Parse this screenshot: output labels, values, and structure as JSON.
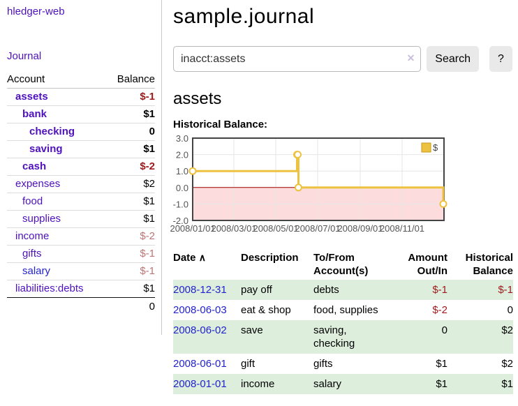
{
  "app": {
    "title": "hledger-web"
  },
  "sidebar": {
    "journal_link": "Journal",
    "accounts_table": {
      "headers": {
        "account": "Account",
        "balance": "Balance"
      },
      "rows": [
        {
          "name": "assets",
          "balance": "$-1",
          "depth": 1,
          "bold": true,
          "visited": true
        },
        {
          "name": "bank",
          "balance": "$1",
          "depth": 2,
          "bold": true,
          "visited": true
        },
        {
          "name": "checking",
          "balance": "0",
          "depth": 3,
          "bold": true,
          "visited": true
        },
        {
          "name": "saving",
          "balance": "$1",
          "depth": 3,
          "bold": true,
          "visited": true
        },
        {
          "name": "cash",
          "balance": "$-2",
          "depth": 2,
          "bold": true,
          "visited": true
        },
        {
          "name": "expenses",
          "balance": "$2",
          "depth": 1,
          "bold": false,
          "visited": true
        },
        {
          "name": "food",
          "balance": "$1",
          "depth": 2,
          "bold": false,
          "visited": true
        },
        {
          "name": "supplies",
          "balance": "$1",
          "depth": 2,
          "bold": false,
          "visited": true
        },
        {
          "name": "income",
          "balance": "$-2",
          "depth": 1,
          "bold": false,
          "visited": true
        },
        {
          "name": "gifts",
          "balance": "$-1",
          "depth": 2,
          "bold": false,
          "visited": true
        },
        {
          "name": "salary",
          "balance": "$-1",
          "depth": 2,
          "bold": false,
          "visited": false
        },
        {
          "name": "liabilities:debts",
          "balance": "$1",
          "depth": 1,
          "bold": false,
          "visited": true
        }
      ],
      "total": "0"
    }
  },
  "header": {
    "title": "sample.journal"
  },
  "search": {
    "value": "inacct:assets",
    "clear_icon": "✕",
    "button_label": "Search",
    "help_label": "?"
  },
  "account_page": {
    "heading": "assets",
    "chart_label": "Historical Balance:"
  },
  "chart_data": {
    "type": "line",
    "style": "step",
    "title": "Historical Balance",
    "series": [
      {
        "name": "$",
        "points": [
          [
            "2008/01/01",
            1
          ],
          [
            "2008/06/01",
            2
          ],
          [
            "2008/06/02",
            2
          ],
          [
            "2008/06/03",
            0
          ],
          [
            "2008/12/31",
            -1
          ]
        ]
      }
    ],
    "x_tick_labels": [
      "2008/01/01",
      "2008/03/01",
      "2008/05/01",
      "2008/07/01",
      "2008/09/01",
      "2008/11/01"
    ],
    "y_tick_labels": [
      "3.0",
      "2.0",
      "1.0",
      "0.0",
      "-1.0",
      "-2.0"
    ],
    "ylim": [
      -2,
      3
    ],
    "x_start": "2008/01/01",
    "x_days": 366,
    "legend": "$",
    "legend_position": "top-right",
    "grid": true,
    "series_color": "#edc240",
    "series_color_border": "#c89a1f",
    "below_zero_fill": "#fcdcdc",
    "zero_line_color": "#a40000",
    "grid_color": "#e6e6e6",
    "plot_border_color": "#444444",
    "axis_text_color": "#545454"
  },
  "register": {
    "headers": {
      "date": "Date",
      "sort_icon": "∧",
      "description": "Description",
      "tofrom": "To/From Account(s)",
      "amount": "Amount Out/In",
      "balance": "Historical Balance"
    },
    "rows": [
      {
        "date": "2008-12-31",
        "description": "pay off",
        "accounts": "debts",
        "amount": "$-1",
        "balance": "$-1"
      },
      {
        "date": "2008-06-03",
        "description": "eat & shop",
        "accounts": "food, supplies",
        "amount": "$-2",
        "balance": "0"
      },
      {
        "date": "2008-06-02",
        "description": "save",
        "accounts": "saving, checking",
        "amount": "0",
        "balance": "$2"
      },
      {
        "date": "2008-06-01",
        "description": "gift",
        "accounts": "gifts",
        "amount": "$1",
        "balance": "$2"
      },
      {
        "date": "2008-01-01",
        "description": "income",
        "accounts": "salary",
        "amount": "$1",
        "balance": "$1"
      }
    ]
  },
  "colors": {
    "link_purple": "#4e11bd",
    "link_blue": "#2323cc",
    "negative": "#9e1a1a",
    "negative_muted": "#bd7474",
    "row_stripe_green": "#ddeedd",
    "series_gold": "#edc240",
    "below_zero_pink": "#fcdcdc",
    "zero_line_red": "#a40000"
  }
}
